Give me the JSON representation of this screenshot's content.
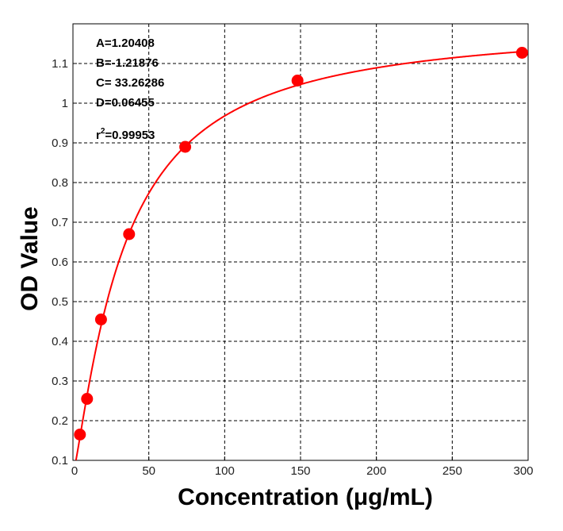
{
  "chart_data": {
    "type": "scatter",
    "xlabel": "Concentration (μg/mL)",
    "ylabel": "OD Value",
    "xlim": [
      0,
      300
    ],
    "ylim": [
      0.1,
      1.2
    ],
    "x_ticks": [
      "0",
      "50",
      "100",
      "150",
      "200",
      "250",
      "300"
    ],
    "y_ticks": [
      "0.1",
      "0.2",
      "0.3",
      "0.4",
      "0.5",
      "0.6",
      "0.7",
      "0.8",
      "0.9",
      "1",
      "1.1"
    ],
    "grid": true,
    "series": [
      {
        "points": [
          {
            "x": 4.6,
            "y": 0.165
          },
          {
            "x": 9.3,
            "y": 0.255
          },
          {
            "x": 18.5,
            "y": 0.455
          },
          {
            "x": 37,
            "y": 0.67
          },
          {
            "x": 74,
            "y": 0.89
          },
          {
            "x": 148,
            "y": 1.057
          },
          {
            "x": 296,
            "y": 1.127
          }
        ],
        "color": "#ff0000"
      }
    ],
    "fit": {
      "model": "4PL",
      "A": 1.20408,
      "B": -1.21876,
      "C": 33.26286,
      "D": 0.06455,
      "color": "#ff0000"
    },
    "annotations": [
      "A=1.20408",
      "B=-1.21876",
      "C= 33.26286",
      "D=0.06455"
    ],
    "r2_prefix": "r",
    "r2_sup": "2",
    "r2_value": "=0.99953"
  }
}
